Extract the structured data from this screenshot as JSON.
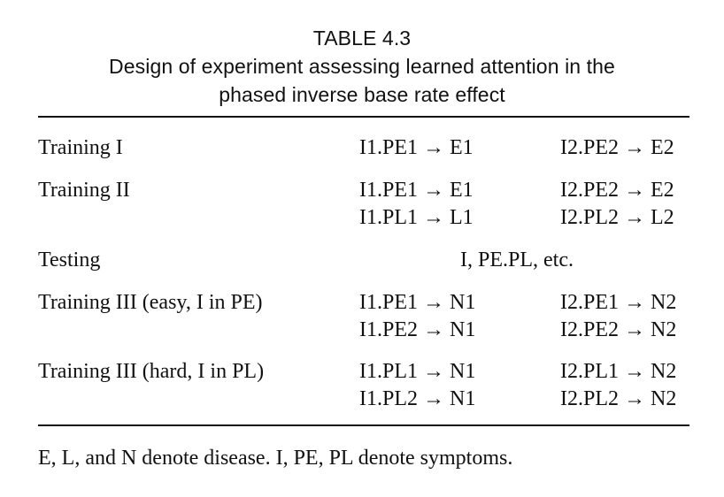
{
  "table": {
    "number": "TABLE 4.3",
    "title_line1": "Design of experiment assessing learned attention in the",
    "title_line2": "phased inverse base rate effect",
    "rows": [
      {
        "label": "Training I",
        "c1": [
          "I1.PE1 → E1"
        ],
        "c2": [
          "I2.PE2 → E2"
        ]
      },
      {
        "label": "Training II",
        "c1": [
          "I1.PE1 → E1",
          "I1.PL1 → L1"
        ],
        "c2": [
          "I2.PE2 → E2",
          "I2.PL2 → L2"
        ]
      },
      {
        "label": "Testing",
        "span": "I, PE.PL, etc."
      },
      {
        "label": "Training III (easy, I in PE)",
        "c1": [
          "I1.PE1 → N1",
          "I1.PE2 → N1"
        ],
        "c2": [
          "I2.PE1 → N2",
          "I2.PE2 → N2"
        ]
      },
      {
        "label": "Training III (hard, I in PL)",
        "c1": [
          "I1.PL1 → N1",
          "I1.PL2 → N1"
        ],
        "c2": [
          "I2.PL1 → N2",
          "I2.PL2 → N2"
        ]
      }
    ],
    "note": "E, L, and N denote disease. I, PE, PL denote symptoms."
  }
}
